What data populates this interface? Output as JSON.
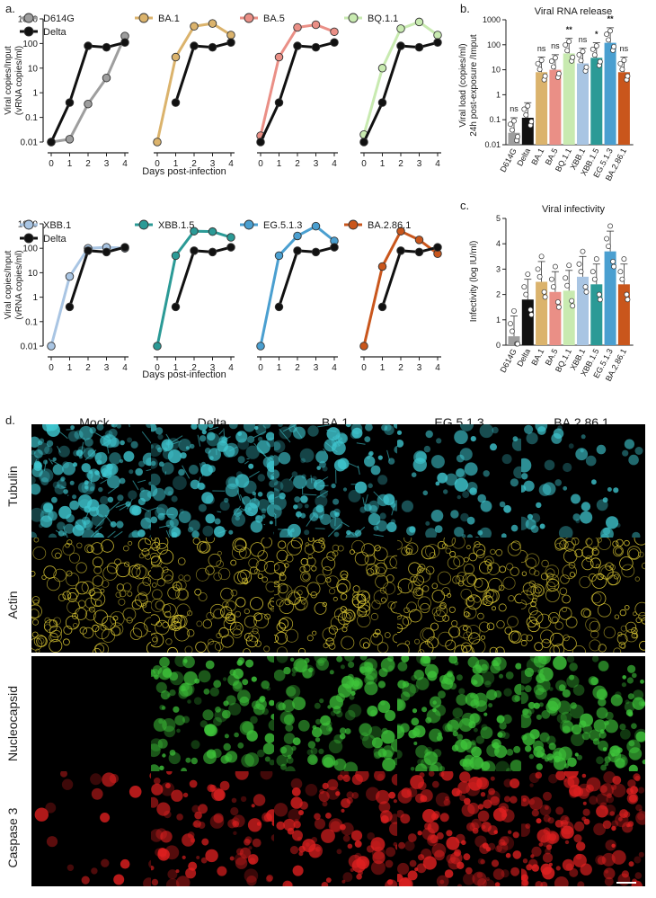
{
  "panels": {
    "a": {
      "label": "a.",
      "ylabel_1": "Viral copies/Input",
      "ylabel_2": "(vRNA copies/ml)",
      "xlabel": "Days post-infection",
      "yticks": [
        "1000",
        "100",
        "10",
        "1",
        "0.1",
        "0.01"
      ],
      "xticks": [
        "0",
        "1",
        "2",
        "3",
        "4"
      ]
    },
    "b": {
      "label": "b.",
      "title": "Viral RNA release",
      "ylabel_1": "Viral load (copies/ml)",
      "ylabel_2": "24h post-exposure /Imput",
      "yticks": [
        "1000",
        "100",
        "10",
        "1",
        "0.1",
        "0.01"
      ]
    },
    "c": {
      "label": "c.",
      "title": "Viral infectivity",
      "ylabel": "Infectivity (log IU/ml)",
      "yticks": [
        "5",
        "4",
        "3",
        "2",
        "1",
        "0"
      ]
    },
    "d": {
      "label": "d.",
      "columns": [
        "Mock",
        "Delta",
        "BA.1",
        "EG.5.1.3",
        "BA.2.86.1"
      ],
      "rows": [
        "Tubulin",
        "Actin",
        "Nucleocapsid",
        "Caspase 3"
      ],
      "colors": {
        "Tubulin": "#3fc6cf",
        "Actin": "#d8c533",
        "Nucleocapsid": "#3ec43a",
        "Caspase 3": "#e02020"
      },
      "intensity": {
        "Tubulin": [
          0.9,
          0.75,
          0.6,
          0.35,
          0.3
        ],
        "Actin": [
          0.7,
          0.75,
          0.75,
          0.8,
          0.75
        ],
        "Nucleocapsid": [
          0.0,
          0.65,
          0.7,
          0.85,
          0.8
        ],
        "Caspase 3": [
          0.12,
          0.5,
          0.55,
          0.75,
          0.8
        ]
      }
    }
  },
  "chart_data": [
    {
      "type": "line",
      "panel": "a-top-1",
      "yscale": "log",
      "ylim": [
        0.01,
        1000
      ],
      "x": [
        0,
        1,
        2,
        3,
        4
      ],
      "series": [
        {
          "name": "D614G",
          "color": "#9e9e9e",
          "values": [
            0.01,
            0.013,
            0.35,
            4,
            200
          ]
        },
        {
          "name": "Delta",
          "color": "#111111",
          "values": [
            0.01,
            0.4,
            80,
            70,
            110
          ]
        }
      ]
    },
    {
      "type": "line",
      "panel": "a-top-2",
      "yscale": "log",
      "ylim": [
        0.01,
        1000
      ],
      "x": [
        0,
        1,
        2,
        3,
        4
      ],
      "series": [
        {
          "name": "BA.1",
          "color": "#dbb36c",
          "values": [
            0.01,
            28,
            500,
            650,
            220
          ]
        },
        {
          "name": "Delta",
          "color": "#111111",
          "values": [
            null,
            0.4,
            80,
            70,
            110
          ]
        }
      ]
    },
    {
      "type": "line",
      "panel": "a-top-3",
      "yscale": "log",
      "ylim": [
        0.01,
        1000
      ],
      "x": [
        0,
        1,
        2,
        3,
        4
      ],
      "series": [
        {
          "name": "BA.5",
          "color": "#ea8f86",
          "values": [
            0.018,
            28,
            450,
            580,
            300
          ]
        },
        {
          "name": "Delta",
          "color": "#111111",
          "values": [
            0.01,
            0.4,
            80,
            70,
            110
          ]
        }
      ]
    },
    {
      "type": "line",
      "panel": "a-top-4",
      "yscale": "log",
      "ylim": [
        0.01,
        1000
      ],
      "x": [
        0,
        1,
        2,
        3,
        4
      ],
      "series": [
        {
          "name": "BQ.1.1",
          "color": "#c8eab0",
          "values": [
            0.02,
            10,
            400,
            750,
            220
          ]
        },
        {
          "name": "Delta",
          "color": "#111111",
          "values": [
            0.01,
            0.4,
            80,
            70,
            110
          ]
        }
      ]
    },
    {
      "type": "line",
      "panel": "a-bot-1",
      "yscale": "log",
      "ylim": [
        0.01,
        1000
      ],
      "x": [
        0,
        1,
        2,
        3,
        4
      ],
      "series": [
        {
          "name": "XBB.1",
          "color": "#a9c5e3",
          "values": [
            0.01,
            7,
            100,
            110,
            100
          ]
        },
        {
          "name": "Delta",
          "color": "#111111",
          "values": [
            null,
            0.4,
            80,
            70,
            110
          ]
        }
      ]
    },
    {
      "type": "line",
      "panel": "a-bot-2",
      "yscale": "log",
      "ylim": [
        0.01,
        1000
      ],
      "x": [
        0,
        1,
        2,
        3,
        4
      ],
      "series": [
        {
          "name": "XBB.1.5",
          "color": "#2b9a96",
          "values": [
            0.01,
            50,
            500,
            480,
            280
          ]
        },
        {
          "name": "Delta",
          "color": "#111111",
          "values": [
            null,
            0.4,
            80,
            70,
            110
          ]
        }
      ]
    },
    {
      "type": "line",
      "panel": "a-bot-3",
      "yscale": "log",
      "ylim": [
        0.01,
        1000
      ],
      "x": [
        0,
        1,
        2,
        3,
        4
      ],
      "series": [
        {
          "name": "EG.5.1.3",
          "color": "#4a9fd0",
          "values": [
            0.01,
            50,
            320,
            800,
            200
          ]
        },
        {
          "name": "Delta",
          "color": "#111111",
          "values": [
            null,
            0.4,
            80,
            70,
            110
          ]
        }
      ]
    },
    {
      "type": "line",
      "panel": "a-bot-4",
      "yscale": "log",
      "ylim": [
        0.01,
        1000
      ],
      "x": [
        0,
        1,
        2,
        3,
        4
      ],
      "series": [
        {
          "name": "BA.2.86.1",
          "color": "#c9561c",
          "values": [
            0.01,
            18,
            500,
            220,
            60
          ]
        },
        {
          "name": "Delta",
          "color": "#111111",
          "values": [
            null,
            0.4,
            80,
            70,
            110
          ]
        }
      ]
    },
    {
      "type": "bar",
      "panel": "b",
      "yscale": "log",
      "ylim": [
        0.01,
        1000
      ],
      "categories": [
        "D614G",
        "Delta",
        "BA.1",
        "BA.5",
        "BQ.1.1",
        "XBB.1",
        "XBB.1.5",
        "EG.5.1.3",
        "BA.2.86.1"
      ],
      "colors": [
        "#9e9e9e",
        "#111111",
        "#dbb36c",
        "#ea8f86",
        "#c8eab0",
        "#a9c5e3",
        "#2b9a96",
        "#4a9fd0",
        "#c9561c"
      ],
      "values": [
        0.03,
        0.12,
        8,
        10,
        45,
        18,
        30,
        120,
        8
      ],
      "significance": [
        "ns",
        "",
        "ns",
        "ns",
        "**",
        "ns",
        "*",
        "**",
        "ns"
      ]
    },
    {
      "type": "bar",
      "panel": "c",
      "ylim": [
        0,
        5
      ],
      "categories": [
        "D614G",
        "Delta",
        "BA.1",
        "BA.5",
        "BQ.1.1",
        "XBB.1",
        "XBB.1.5",
        "EG.5.1.3",
        "BA.2.86.1"
      ],
      "colors": [
        "#9e9e9e",
        "#111111",
        "#dbb36c",
        "#ea8f86",
        "#c8eab0",
        "#a9c5e3",
        "#2b9a96",
        "#4a9fd0",
        "#c9561c"
      ],
      "values": [
        0.35,
        1.8,
        2.5,
        2.1,
        2.15,
        2.7,
        2.4,
        3.7,
        2.4
      ]
    }
  ]
}
